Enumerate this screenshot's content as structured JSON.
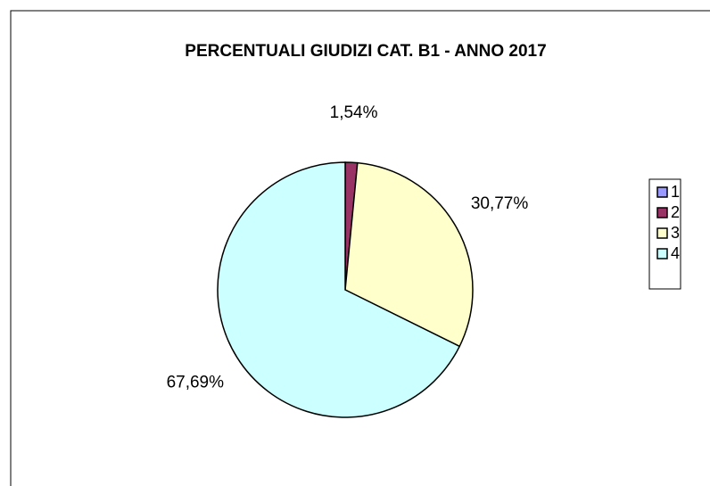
{
  "chart_data": {
    "type": "pie",
    "title": "PERCENTUALI GIUDIZI CAT. B1 - ANNO 2017",
    "categories": [
      "1",
      "2",
      "3",
      "4"
    ],
    "values": [
      0,
      1.54,
      30.77,
      67.69
    ],
    "value_labels": [
      null,
      "1,54%",
      "30,77%",
      "67,69%"
    ],
    "colors": [
      "#9999ff",
      "#993366",
      "#ffffcc",
      "#ccffff"
    ],
    "legend": "right"
  }
}
